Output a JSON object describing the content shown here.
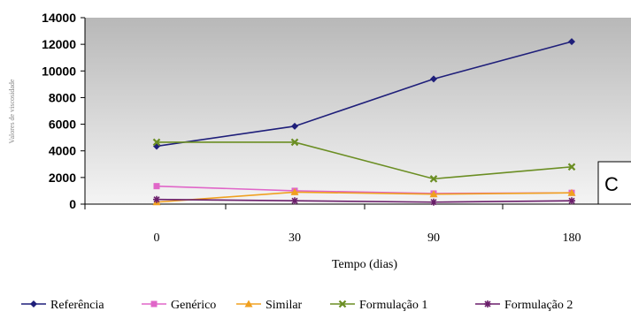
{
  "chart_data": {
    "type": "line",
    "x_categories": [
      "0",
      "30",
      "90",
      "180"
    ],
    "xlabel": "Tempo (dias)",
    "ylabel": "Valores de viscosidade",
    "ylim": [
      0,
      14000
    ],
    "y_ticks": [
      0,
      2000,
      4000,
      6000,
      8000,
      10000,
      12000,
      14000
    ],
    "grid": false,
    "plot_background": "gradient gray",
    "legend_position": "bottom",
    "corner_box_text": "C",
    "series": [
      {
        "name": "Referência",
        "color": "#1f1f7a",
        "marker": "diamond",
        "values": [
          4350,
          5850,
          9400,
          12200
        ]
      },
      {
        "name": "Genérico",
        "color": "#e066c8",
        "marker": "square",
        "values": [
          1350,
          1000,
          800,
          850
        ]
      },
      {
        "name": "Similar",
        "color": "#f0a020",
        "marker": "triangle",
        "values": [
          150,
          900,
          750,
          850
        ]
      },
      {
        "name": "Formulação 1",
        "color": "#6b8e23",
        "marker": "x",
        "values": [
          4650,
          4650,
          1900,
          2800
        ]
      },
      {
        "name": "Formulação 2",
        "color": "#6b1f6b",
        "marker": "star",
        "values": [
          350,
          250,
          150,
          250
        ]
      }
    ]
  }
}
